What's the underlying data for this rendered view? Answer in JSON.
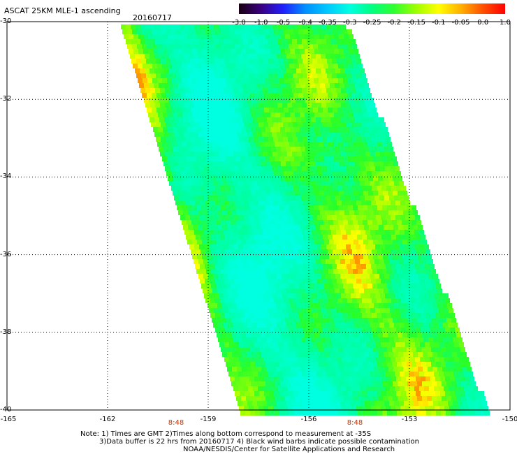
{
  "header": {
    "title": "ASCAT 25KM MLE-1 ascending",
    "date": "20160717"
  },
  "colorbar": {
    "labels": [
      "-3.0",
      "-1.0",
      "-0.5",
      "-0.4",
      "-0.35",
      "-0.3",
      "-0.25",
      "-0.2",
      "-0.15",
      "-0.1",
      "-0.05",
      "0.0",
      "1.0"
    ],
    "colors": [
      "#1a0010",
      "#3a0080",
      "#2020ff",
      "#0090ff",
      "#00c8ff",
      "#00ffe0",
      "#00ff80",
      "#30ff30",
      "#a0ff00",
      "#ffff00",
      "#ffb000",
      "#ff5000",
      "#ff0000"
    ]
  },
  "axes": {
    "y_ticks": [
      "-30",
      "-32",
      "-34",
      "-36",
      "-38",
      "-40"
    ],
    "x_ticks": [
      "-165",
      "-162",
      "-159",
      "-156",
      "-153",
      "-150"
    ],
    "y_range": [
      -40,
      -30
    ],
    "x_range": [
      -165,
      -150
    ]
  },
  "time_labels": [
    "8:48",
    "8:48"
  ],
  "notes": {
    "line1": "Note: 1) Times are GMT 2)Times along bottom correspond to measurement at -35S",
    "line2": "3)Data buffer is 22 hrs from 20160717 4) Black wind barbs indicate possible contamination",
    "line3": "NOAA/NESDIS/Center for Satellite Applications and Research"
  }
}
